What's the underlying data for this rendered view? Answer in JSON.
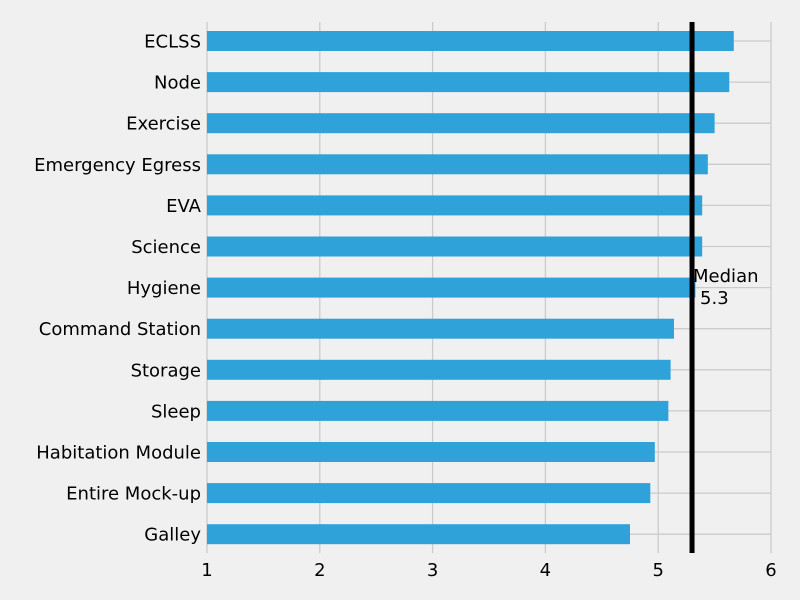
{
  "chart_data": {
    "type": "bar",
    "orientation": "horizontal",
    "categories": [
      "ECLSS",
      "Node",
      "Exercise",
      "Emergency Egress",
      "EVA",
      "Science",
      "Hygiene",
      "Command Station",
      "Storage",
      "Sleep",
      "Habitation Module",
      "Entire Mock-up",
      "Galley"
    ],
    "values": [
      5.67,
      5.63,
      5.5,
      5.44,
      5.39,
      5.39,
      5.33,
      5.14,
      5.11,
      5.09,
      4.97,
      4.93,
      4.75
    ],
    "xlim": [
      1,
      6
    ],
    "xticks": [
      "1",
      "2",
      "3",
      "4",
      "5",
      "6"
    ],
    "title": "",
    "xlabel": "",
    "ylabel": "",
    "grid": true,
    "bar_color": "#30a2da",
    "median": {
      "value": 5.3,
      "label_line1": "Median",
      "label_line2": "5.3",
      "color": "#000000"
    }
  }
}
